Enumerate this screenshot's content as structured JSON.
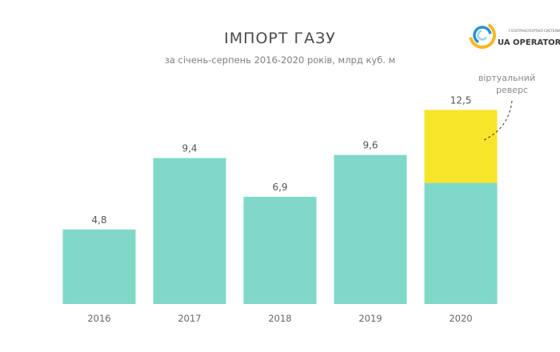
{
  "chart_data": {
    "type": "bar",
    "title": "ІМПОРТ ГАЗУ",
    "subtitle": "за січень-серпень 2016-2020 років, млрд куб. м",
    "categories": [
      "2016",
      "2017",
      "2018",
      "2019",
      "2020"
    ],
    "value_labels": [
      "4,8",
      "9,4",
      "6,9",
      "9,6",
      "12,5"
    ],
    "series": [
      {
        "values": [
          4.8,
          9.4,
          6.9,
          9.6,
          7.8
        ],
        "color": "#7fd8c8"
      },
      {
        "name": "віртуальний реверс",
        "values": [
          0,
          0,
          0,
          0,
          4.7
        ],
        "color": "#f7e52a"
      }
    ],
    "totals": [
      4.8,
      9.4,
      6.9,
      9.6,
      12.5
    ],
    "ylim": [
      0,
      13.5
    ],
    "grid": false,
    "legend": "none",
    "annotation": {
      "lines": [
        "віртуальний",
        "реверс"
      ],
      "target_category": "2020",
      "target_series": "віртуальний реверс"
    }
  },
  "logo": {
    "brand_main": "UA OPERATOR",
    "brand_sub": "ГАЗОТРАНСПОРТНОЇ СИСТЕМИ",
    "colors": [
      "#f5b820",
      "#2a8fd6",
      "#9bd3f2"
    ]
  }
}
